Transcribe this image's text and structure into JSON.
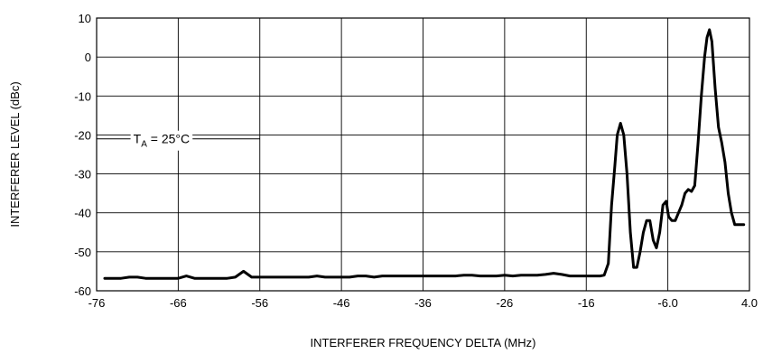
{
  "chart_data": {
    "type": "line",
    "title": "",
    "xlabel": "INTERFERER FREQUENCY DELTA (MHz)",
    "ylabel": "INTERFERER LEVEL (dBc)",
    "xlim": [
      -76,
      4
    ],
    "ylim": [
      -60,
      10
    ],
    "xticks": [
      "-76",
      "-66",
      "-56",
      "-46",
      "-36",
      "-26",
      "-16",
      "-6.0",
      "4.0"
    ],
    "xtick_values": [
      -76,
      -66,
      -56,
      -46,
      -36,
      -26,
      -16,
      -6,
      4
    ],
    "yticks": [
      "10",
      "0",
      "-10",
      "-20",
      "-30",
      "-40",
      "-50",
      "-60"
    ],
    "ytick_values": [
      10,
      0,
      -10,
      -20,
      -30,
      -40,
      -50,
      -60
    ],
    "grid": true,
    "annotation": {
      "main": "T",
      "sub": "A",
      "rest": " = 25°C",
      "x": -76,
      "y": -21
    },
    "series": [
      {
        "x": [
          -75,
          -74,
          -73,
          -72,
          -71,
          -70,
          -69,
          -68,
          -67,
          -66,
          -65,
          -64,
          -63,
          -62,
          -61,
          -60,
          -59,
          -58,
          -57,
          -56,
          -55,
          -54,
          -53,
          -52,
          -51,
          -50,
          -49,
          -48,
          -47,
          -46,
          -45,
          -44,
          -43,
          -42,
          -41,
          -40,
          -39,
          -38,
          -37,
          -36,
          -35,
          -34,
          -33,
          -32,
          -31,
          -30,
          -29,
          -28,
          -27,
          -26,
          -25,
          -24,
          -23,
          -22,
          -21,
          -20,
          -19,
          -18,
          -17,
          -16,
          -15.3,
          -14.8,
          -14.3,
          -13.8,
          -13.3,
          -12.9,
          -12.5,
          -12.2,
          -11.8,
          -11.4,
          -11.0,
          -10.6,
          -10.2,
          -9.8,
          -9.4,
          -9.0,
          -8.6,
          -8.2,
          -7.8,
          -7.4,
          -7.0,
          -6.6,
          -6.2,
          -5.9,
          -5.5,
          -5.1,
          -4.7,
          -4.3,
          -3.9,
          -3.5,
          -3.1,
          -2.7,
          -2.3,
          -1.9,
          -1.5,
          -1.2,
          -0.9,
          -0.6,
          -0.2,
          0.2,
          0.6,
          1.0,
          1.4,
          1.8,
          2.2,
          2.6,
          3.0,
          3.3
        ],
        "values": [
          -56.8,
          -56.8,
          -56.8,
          -56.5,
          -56.5,
          -56.8,
          -56.8,
          -56.8,
          -56.8,
          -56.8,
          -56.2,
          -56.8,
          -56.8,
          -56.8,
          -56.8,
          -56.8,
          -56.5,
          -55,
          -56.5,
          -56.5,
          -56.5,
          -56.5,
          -56.5,
          -56.5,
          -56.5,
          -56.5,
          -56.2,
          -56.5,
          -56.5,
          -56.5,
          -56.5,
          -56.2,
          -56.2,
          -56.5,
          -56.2,
          -56.2,
          -56.2,
          -56.2,
          -56.2,
          -56.2,
          -56.2,
          -56.2,
          -56.2,
          -56.2,
          -56,
          -56,
          -56.2,
          -56.2,
          -56.2,
          -56,
          -56.2,
          -56,
          -56,
          -56,
          -55.8,
          -55.5,
          -55.8,
          -56.2,
          -56.2,
          -56.2,
          -56.2,
          -56.2,
          -56.2,
          -56,
          -53,
          -38,
          -28,
          -20,
          -17,
          -20,
          -30,
          -45,
          -54,
          -54,
          -50,
          -45,
          -42,
          -42,
          -47,
          -49,
          -45,
          -38,
          -37,
          -41,
          -42,
          -42,
          -40,
          -38,
          -35,
          -34,
          -34.5,
          -33,
          -22,
          -10,
          0,
          5,
          7,
          4,
          -8,
          -18,
          -22,
          -27,
          -35,
          -40,
          -43,
          -43,
          -43,
          -43
        ]
      }
    ]
  }
}
